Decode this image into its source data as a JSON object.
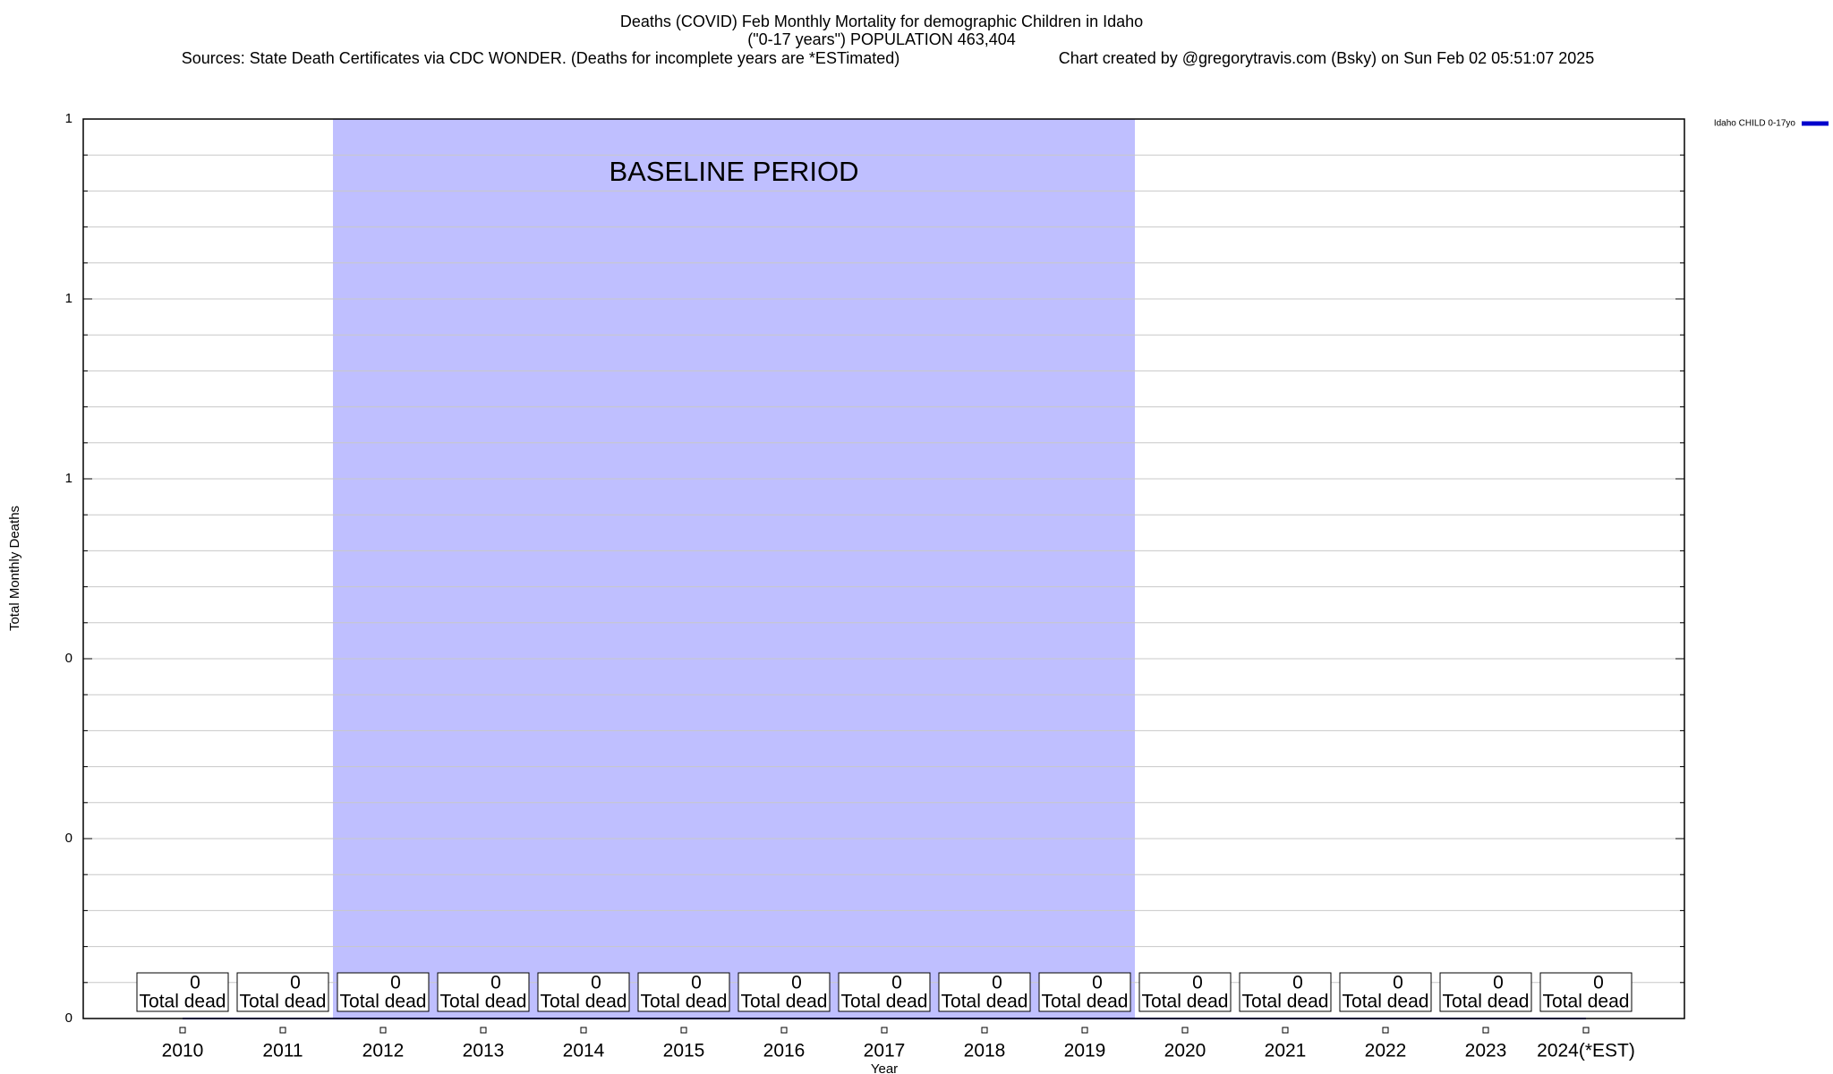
{
  "chart_data": {
    "type": "line",
    "title": "Deaths (COVID) Feb Monthly Mortality for demographic Children in Idaho",
    "subtitle": "(\"0-17 years\") POPULATION 463,404",
    "source": "Sources: State Death Certificates via CDC WONDER. (Deaths for incomplete years are *ESTimated)",
    "credit": "Chart created by @gregorytravis.com (Bsky) on Sun Feb 02 05:51:07 2025",
    "x_label": "Year",
    "y_label": "Total Monthly Deaths",
    "categories": [
      "2010",
      "2011",
      "2012",
      "2013",
      "2014",
      "2015",
      "2016",
      "2017",
      "2018",
      "2019",
      "2020",
      "2021",
      "2022",
      "2023",
      "2024(*EST)"
    ],
    "series": [
      {
        "name": "Idaho CHILD 0-17yo",
        "color": "#0000cc",
        "values": [
          0,
          0,
          0,
          0,
          0,
          0,
          0,
          0,
          0,
          0,
          0,
          0,
          0,
          0,
          0
        ]
      }
    ],
    "data_label_caption": "Total dead",
    "shaded_region": {
      "label": "BASELINE PERIOD",
      "from": "2012",
      "to": "2019",
      "color": "#bfbfff"
    },
    "ylim": [
      0,
      1
    ],
    "yticks": [
      0,
      {
        "value": 0.2,
        "label": "0"
      },
      {
        "value": 0.4,
        "label": "0"
      },
      {
        "value": 0.6,
        "label": "1"
      },
      {
        "value": 0.8,
        "label": "1"
      },
      1
    ],
    "grid": true,
    "legend": "top-right"
  }
}
